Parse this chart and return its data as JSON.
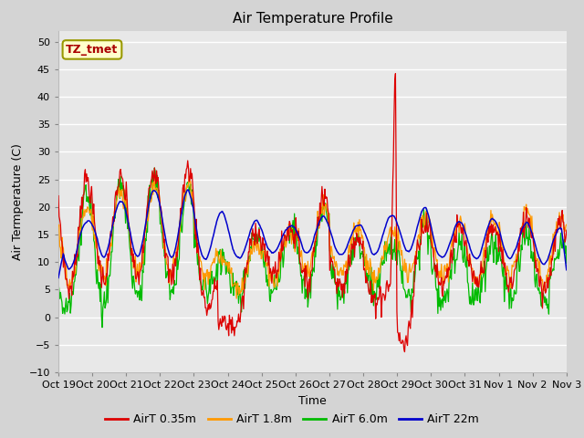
{
  "title": "Air Temperature Profile",
  "xlabel": "Time",
  "ylabel": "Air Termperature (C)",
  "ylim": [
    -10,
    52
  ],
  "yticks": [
    -10,
    -5,
    0,
    5,
    10,
    15,
    20,
    25,
    30,
    35,
    40,
    45,
    50
  ],
  "fig_bg_color": "#d4d4d4",
  "plot_bg_color": "#e8e8e8",
  "grid_color": "#ffffff",
  "legend_labels": [
    "AirT 0.35m",
    "AirT 1.8m",
    "AirT 6.0m",
    "AirT 22m"
  ],
  "legend_colors": [
    "#dd0000",
    "#ff9900",
    "#00bb00",
    "#0000cc"
  ],
  "annotation_text": "TZ_tmet",
  "annotation_text_color": "#aa0000",
  "annotation_bg_color": "#ffffcc",
  "annotation_border_color": "#999900",
  "x_tick_labels": [
    "Oct 19",
    "Oct 20",
    "Oct 21",
    "Oct 22",
    "Oct 23",
    "Oct 24",
    "Oct 25",
    "Oct 26",
    "Oct 27",
    "Oct 28",
    "Oct 29",
    "Oct 30",
    "Oct 31",
    "Nov 1",
    "Nov 2",
    "Nov 3"
  ]
}
